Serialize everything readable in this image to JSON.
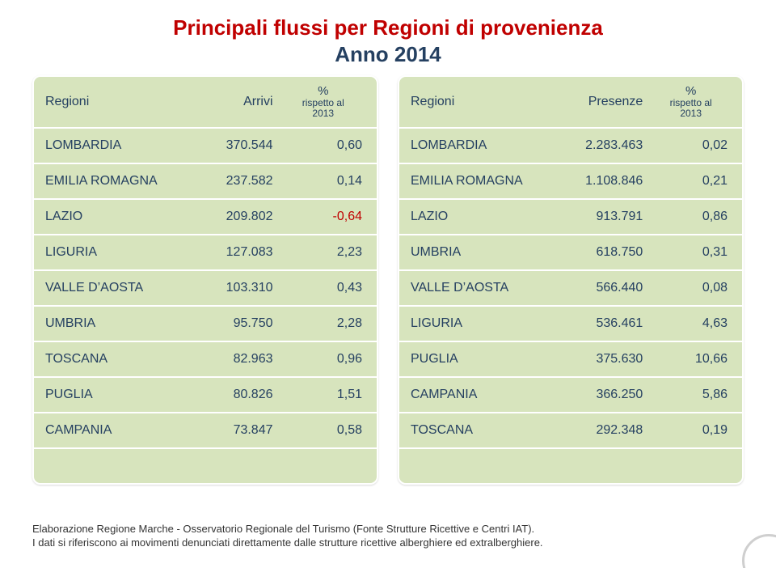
{
  "colors": {
    "title_line1": "#c00000",
    "title_line2": "#254061",
    "panel_bg": "#d7e4bd",
    "row_divider": "#ffffff",
    "text": "#254061",
    "negative": "#c00000"
  },
  "title": {
    "line1": "Principali flussi per Regioni di provenienza",
    "line2": "Anno 2014"
  },
  "left": {
    "headers": {
      "region": "Regioni",
      "value": "Arrivi",
      "pct_top": "%",
      "pct_sub1": "rispetto al",
      "pct_sub2": "2013"
    },
    "rows": [
      {
        "region": "LOMBARDIA",
        "value": "370.544",
        "pct": "0,60"
      },
      {
        "region": "EMILIA ROMAGNA",
        "value": "237.582",
        "pct": "0,14"
      },
      {
        "region": "LAZIO",
        "value": "209.802",
        "pct": "-0,64",
        "neg": true
      },
      {
        "region": "LIGURIA",
        "value": "127.083",
        "pct": "2,23"
      },
      {
        "region": "VALLE D’AOSTA",
        "value": "103.310",
        "pct": "0,43"
      },
      {
        "region": "UMBRIA",
        "value": "95.750",
        "pct": "2,28"
      },
      {
        "region": "TOSCANA",
        "value": "82.963",
        "pct": "0,96"
      },
      {
        "region": "PUGLIA",
        "value": "80.826",
        "pct": "1,51"
      },
      {
        "region": "CAMPANIA",
        "value": "73.847",
        "pct": "0,58"
      }
    ]
  },
  "right": {
    "headers": {
      "region": "Regioni",
      "value": "Presenze",
      "pct_top": "%",
      "pct_sub1": "rispetto al",
      "pct_sub2": "2013"
    },
    "rows": [
      {
        "region": "LOMBARDIA",
        "value": "2.283.463",
        "pct": "0,02"
      },
      {
        "region": "EMILIA ROMAGNA",
        "value": "1.108.846",
        "pct": "0,21"
      },
      {
        "region": "LAZIO",
        "value": "913.791",
        "pct": "0,86"
      },
      {
        "region": "UMBRIA",
        "value": "618.750",
        "pct": "0,31"
      },
      {
        "region": "VALLE D’AOSTA",
        "value": "566.440",
        "pct": "0,08"
      },
      {
        "region": "LIGURIA",
        "value": "536.461",
        "pct": "4,63"
      },
      {
        "region": "PUGLIA",
        "value": "375.630",
        "pct": "10,66"
      },
      {
        "region": "CAMPANIA",
        "value": "366.250",
        "pct": "5,86"
      },
      {
        "region": "TOSCANA",
        "value": "292.348",
        "pct": "0,19"
      }
    ]
  },
  "footnote": {
    "line1": "Elaborazione Regione Marche - Osservatorio Regionale del Turismo (Fonte Strutture Ricettive e Centri IAT).",
    "line2": "I dati si riferiscono ai movimenti denunciati direttamente dalle strutture ricettive alberghiere ed extralberghiere."
  }
}
